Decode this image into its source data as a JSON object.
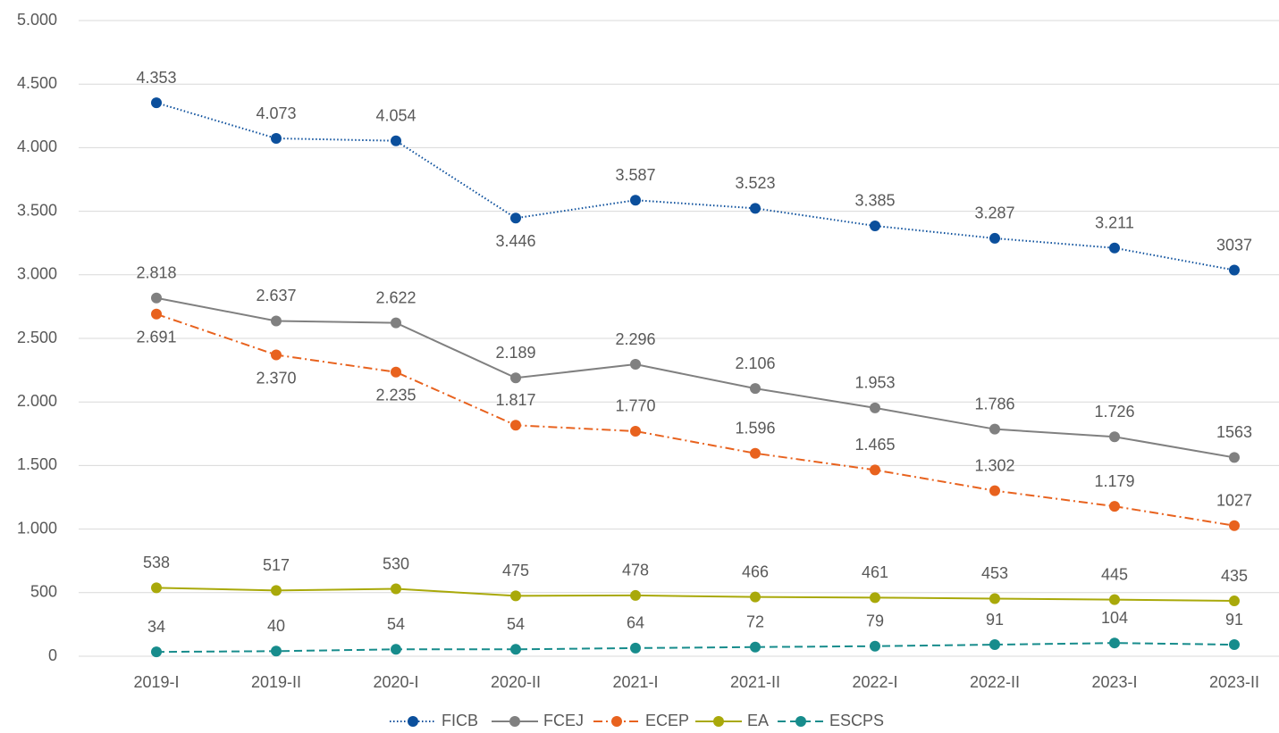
{
  "chart_data": {
    "type": "line",
    "categories": [
      "2019-I",
      "2019-II",
      "2020-I",
      "2020-II",
      "2021-I",
      "2021-II",
      "2022-I",
      "2022-II",
      "2023-I",
      "2023-II"
    ],
    "series": [
      {
        "name": "FICB",
        "color": "#0b4f9c",
        "line_style": "dotted",
        "values": [
          4353,
          4073,
          4054,
          3446,
          3587,
          3523,
          3385,
          3287,
          3211,
          3037
        ],
        "value_labels": [
          "4.353",
          "4.073",
          "4.054",
          "3.446",
          "3.587",
          "3.523",
          "3.385",
          "3.287",
          "3.211",
          "3037"
        ]
      },
      {
        "name": "FCEJ",
        "color": "#808080",
        "line_style": "solid",
        "values": [
          2818,
          2637,
          2622,
          2189,
          2296,
          2106,
          1953,
          1786,
          1726,
          1563
        ],
        "value_labels": [
          "2.818",
          "2.637",
          "2.622",
          "2.189",
          "2.296",
          "2.106",
          "1.953",
          "1.786",
          "1.726",
          "1563"
        ]
      },
      {
        "name": "ECEP",
        "color": "#e8621e",
        "line_style": "dashdot",
        "values": [
          2691,
          2370,
          2235,
          1817,
          1770,
          1596,
          1465,
          1302,
          1179,
          1027
        ],
        "value_labels": [
          "2.691",
          "2.370",
          "2.235",
          "1.817",
          "1.770",
          "1.596",
          "1.465",
          "1.302",
          "1.179",
          "1027"
        ]
      },
      {
        "name": "EA",
        "color": "#a9a90a",
        "line_style": "solid",
        "values": [
          538,
          517,
          530,
          475,
          478,
          466,
          461,
          453,
          445,
          435
        ]
      },
      {
        "name": "ESCPS",
        "color": "#178c8c",
        "line_style": "dashed",
        "values": [
          34,
          40,
          54,
          54,
          64,
          72,
          79,
          91,
          104,
          91
        ]
      }
    ],
    "ylim": [
      0,
      5000
    ],
    "yticks": [
      0,
      500,
      {
        "value": 1000,
        "label": "1.000"
      },
      {
        "value": 1500,
        "label": "1.500"
      },
      {
        "value": 2000,
        "label": "2.000"
      },
      {
        "value": 2500,
        "label": "2.500"
      },
      {
        "value": 3000,
        "label": "3.000"
      },
      {
        "value": 3500,
        "label": "3.500"
      },
      {
        "value": 4000,
        "label": "4.000"
      },
      {
        "value": 4500,
        "label": "4.500"
      },
      {
        "value": 5000,
        "label": "5.000"
      }
    ],
    "grid": true,
    "legend": "bottom"
  }
}
